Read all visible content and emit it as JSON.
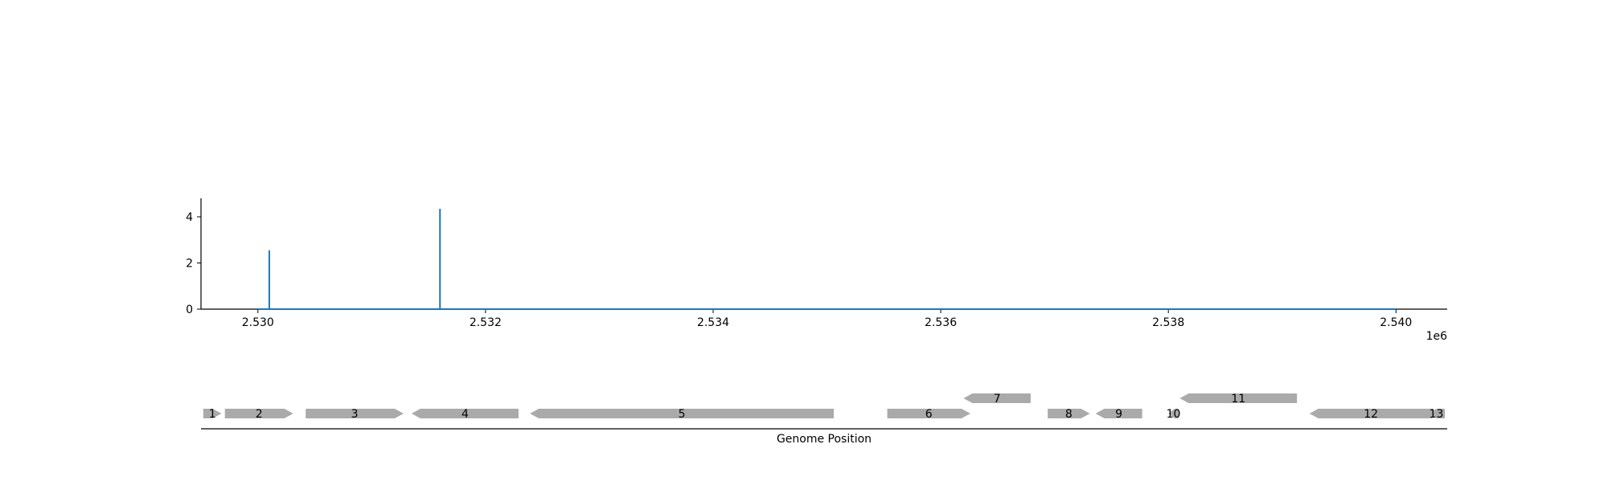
{
  "chart_data": [
    {
      "type": "line",
      "title": "",
      "xlabel": "",
      "ylabel": "",
      "x_offset_label": "1e6",
      "xlim": [
        2529500,
        2540450
      ],
      "ylim": [
        0,
        4.8
      ],
      "x_ticks": [
        2530000,
        2532000,
        2534000,
        2536000,
        2538000,
        2540000
      ],
      "x_tick_labels": [
        "2.530",
        "2.532",
        "2.534",
        "2.536",
        "2.538",
        "2.540"
      ],
      "y_ticks": [
        0,
        2,
        4
      ],
      "y_tick_labels": [
        "0",
        "2",
        "4"
      ],
      "grid": false,
      "color": "#1f77b4",
      "baseline": {
        "x": [
          2530000,
          2540000
        ],
        "y": 0
      },
      "spikes": [
        {
          "x": 2530100,
          "y": 2.55
        },
        {
          "x": 2531600,
          "y": 4.35
        }
      ]
    },
    {
      "type": "gene-map",
      "xlabel": "Genome Position",
      "xlim": [
        2529500,
        2540450
      ],
      "color": "#aaaaaa",
      "genes": [
        {
          "label": "1",
          "start": 2529520,
          "end": 2529680,
          "strand": "+",
          "row": 0
        },
        {
          "label": "2",
          "start": 2529710,
          "end": 2530310,
          "strand": "+",
          "row": 0
        },
        {
          "label": "3",
          "start": 2530420,
          "end": 2531280,
          "strand": "+",
          "row": 0
        },
        {
          "label": "4",
          "start": 2531350,
          "end": 2532290,
          "strand": "-",
          "row": 0
        },
        {
          "label": "5",
          "start": 2532390,
          "end": 2535060,
          "strand": "-",
          "row": 0
        },
        {
          "label": "6",
          "start": 2535530,
          "end": 2536260,
          "strand": "+",
          "row": 0
        },
        {
          "label": "7",
          "start": 2536200,
          "end": 2536790,
          "strand": "-",
          "row": 1
        },
        {
          "label": "8",
          "start": 2536940,
          "end": 2537310,
          "strand": "+",
          "row": 0
        },
        {
          "label": "9",
          "start": 2537360,
          "end": 2537770,
          "strand": "-",
          "row": 0
        },
        {
          "label": "10",
          "start": 2538000,
          "end": 2538090,
          "strand": "-",
          "row": 0
        },
        {
          "label": "11",
          "start": 2538100,
          "end": 2539130,
          "strand": "-",
          "row": 1
        },
        {
          "label": "12",
          "start": 2539240,
          "end": 2540320,
          "strand": "-",
          "row": 0
        },
        {
          "label": "13",
          "start": 2540280,
          "end": 2540430,
          "strand": "-",
          "row": 0
        }
      ]
    }
  ]
}
